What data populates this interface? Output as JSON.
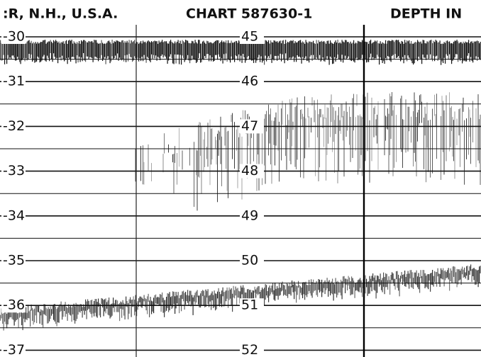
{
  "header": {
    "location": ":R, N.H., U.S.A.",
    "chart": "CHART 587630-1",
    "depth": "DEPTH IN"
  },
  "left_scale": [
    "-30",
    "-31",
    "-32",
    "-33",
    "-34",
    "-35",
    "-36",
    "-37"
  ],
  "middle_scale": [
    "45",
    "46",
    "47",
    "48",
    "49",
    "50",
    "51",
    "52"
  ]
}
